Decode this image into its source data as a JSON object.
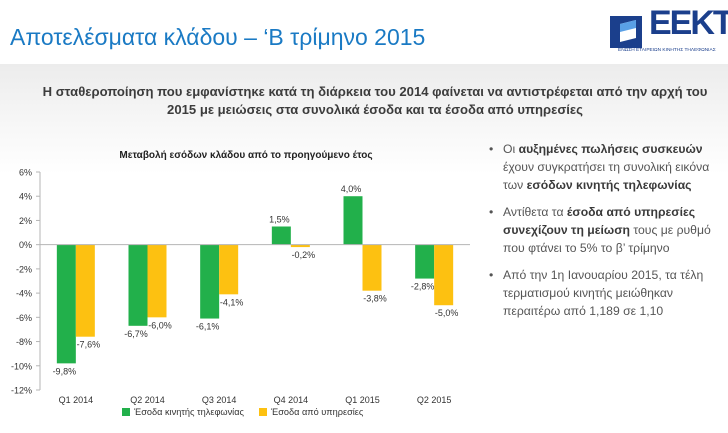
{
  "title": "Αποτελέσματα κλάδου – ‘Β τρίμηνο 2015",
  "logo": {
    "text": "ΕΕΚΤ",
    "tagline": "ΕΝΩΣΗ ΕΤΑΙΡΕΙΩΝ ΚΙΝΗΤΗΣ ΤΗΛΕΦΩΝΙΑΣ"
  },
  "subtitle": "Η σταθεροποίηση που εμφανίστηκε κατά τη διάρκεια του 2014 φαίνεται να αντιστρέφεται από την αρχή του 2015 με μειώσεις στα συνολικά έσοδα και τα έσοδα από υπηρεσίες",
  "bullets": [
    {
      "parts": [
        {
          "text": "Οι ",
          "bold": false
        },
        {
          "text": "αυξημένες πωλήσεις συσκευών",
          "bold": true
        },
        {
          "text": " έχουν συγκρατήσει τη συνολική εικόνα των ",
          "bold": false
        },
        {
          "text": "εσόδων κινητής τηλεφωνίας",
          "bold": true
        }
      ]
    },
    {
      "parts": [
        {
          "text": "Αντίθετα τα ",
          "bold": false
        },
        {
          "text": "έσοδα από υπηρεσίες συνεχίζουν τη μείωση",
          "bold": true
        },
        {
          "text": " τους με ρυθμό που φτάνει το 5% το β’ τρίμηνο",
          "bold": false
        }
      ]
    },
    {
      "parts": [
        {
          "text": " Από την 1η Ιανουαρίου 2015, τα τέλη τερματισμού κινητής μειώθηκαν περαιτέρω από 1,189 σε 1,10",
          "bold": false
        }
      ]
    }
  ],
  "chart_data": {
    "type": "bar",
    "title": "Μεταβολή εσόδων κλάδου από το προηγούμενο έτος",
    "categories": [
      "Q1 2014",
      "Q2 2014",
      "Q3 2014",
      "Q4 2014",
      "Q1 2015",
      "Q2 2015"
    ],
    "series": [
      {
        "name": "Έσοδα κινητής τηλεφωνίας",
        "color": "#22b04b",
        "values": [
          -9.8,
          -6.7,
          -6.1,
          1.5,
          4.0,
          -2.8
        ],
        "labels": [
          "-9,8%",
          "-6,7%",
          "-6,1%",
          "1,5%",
          "4,0%",
          "-2,8%"
        ]
      },
      {
        "name": "Έσοδα από υπηρεσίες",
        "color": "#fdc111",
        "values": [
          -7.6,
          -6.0,
          -4.1,
          -0.2,
          -3.8,
          -5.0
        ],
        "labels": [
          "-7,6%",
          "-6,0%",
          "-4,1%",
          "-0,2%",
          "-3,8%",
          "-5,0%"
        ]
      }
    ],
    "ylim": [
      -12,
      6
    ],
    "yticks": [
      6,
      4,
      2,
      0,
      -2,
      -4,
      -6,
      -8,
      -10,
      -12
    ],
    "ytick_labels": [
      "6%",
      "4%",
      "2%",
      "0%",
      "-2%",
      "-4%",
      "-6%",
      "-8%",
      "-10%",
      "-12%"
    ],
    "legend": "bottom",
    "grid": false
  }
}
